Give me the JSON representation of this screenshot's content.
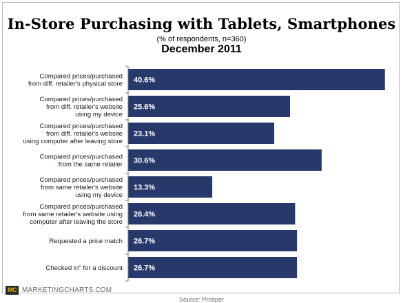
{
  "chart_data": {
    "type": "bar",
    "orientation": "horizontal",
    "title": "In-Store Purchasing with Tablets, Smartphones",
    "subtitle": "(% of respondents, n=360)",
    "date_label": "December 2011",
    "categories": [
      "Compared prices/purchased\nfrom diff. retailer's physical store",
      "Compared prices/purchased\nfrom diff. retailer's website\nusing my device",
      "Compared prices/purchased\nfrom diff. retailer's website\nusing computer after leaving store",
      "Compared prices/purchased\nfrom the same retailer",
      "Compared prices/purchased\nfrom same retailer's website\nusing my device",
      "Compared prices/purchased\nfrom same retailer's website using\ncomputer after leaving the store",
      "Requested a price match",
      "Checked in\" for a discount"
    ],
    "values": [
      40.6,
      25.6,
      23.1,
      30.6,
      13.3,
      26.4,
      26.7,
      26.7
    ],
    "value_labels": [
      "40.6%",
      "25.6%",
      "23.1%",
      "30.6%",
      "13.3%",
      "26.4%",
      "26.7%",
      "26.7%"
    ],
    "xlim": [
      0,
      41.5
    ],
    "bar_color": "#27386a",
    "label_color": "#ffffff"
  },
  "footer": {
    "logo_text": "MC",
    "brand": "MARKETINGCHARTS.COM",
    "source": "Source: Prosper"
  }
}
